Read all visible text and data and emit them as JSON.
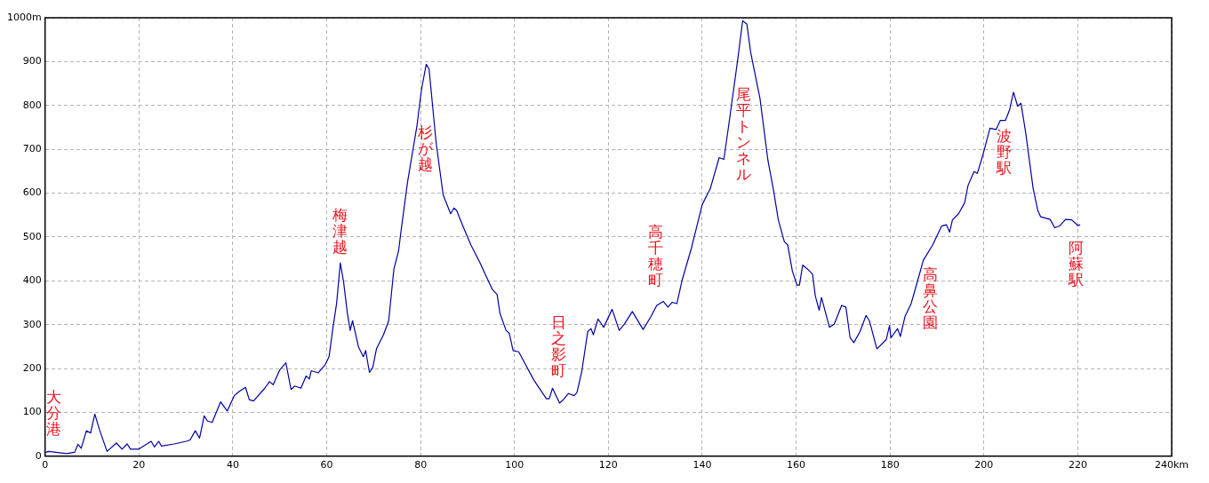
{
  "chart_data": {
    "type": "line",
    "xlim": [
      0,
      240
    ],
    "ylim": [
      0,
      1000
    ],
    "xticks": [
      0,
      20,
      40,
      60,
      80,
      100,
      120,
      140,
      160,
      180,
      200,
      220,
      {
        "value": 240,
        "label": "240km"
      }
    ],
    "yticks": [
      0,
      100,
      200,
      300,
      400,
      500,
      600,
      700,
      800,
      900,
      {
        "value": 1000,
        "label": "1000m"
      }
    ],
    "grid": true,
    "legend": false,
    "marker": "none",
    "line_style": "solid",
    "series": [
      {
        "color": "#0000a0",
        "x": [
          0,
          0.7,
          4.6,
          6.3,
          7,
          7.7,
          8.8,
          9.7,
          10.6,
          11.6,
          13.2,
          15.2,
          16.4,
          17.5,
          18.2,
          19.9,
          22.6,
          23.3,
          24.2,
          24.8,
          27.5,
          30.1,
          30.9,
          32,
          32.9,
          33.9,
          34.6,
          35.6,
          37.4,
          38.8,
          40.3,
          41.4,
          42.7,
          43.5,
          44.4,
          46.8,
          47.8,
          48.6,
          50,
          51.3,
          52.4,
          53.2,
          54.5,
          55.6,
          56.3,
          56.7,
          58.2,
          59.7,
          60.5,
          61.3,
          62.1,
          62.9,
          63.6,
          64.4,
          65,
          65.5,
          66.8,
          67.8,
          68.3,
          69.1,
          69.8,
          70.6,
          72.1,
          73.2,
          74.3,
          75.3,
          75.8,
          77.2,
          79.2,
          80.2,
          81.2,
          81.8,
          83.3,
          84.8,
          86.4,
          87.1,
          87.7,
          89,
          90.7,
          92.7,
          93.3,
          95.3,
          96.3,
          96.9,
          98.2,
          98.9,
          99.7,
          100.9,
          102.5,
          104.1,
          106.8,
          107.4,
          108.1,
          109.6,
          110.4,
          111.5,
          112.7,
          113.3,
          114.3,
          115.6,
          116.3,
          116.8,
          117.8,
          119,
          120.8,
          122.3,
          123.4,
          125.1,
          127.4,
          129.1,
          130.3,
          131.7,
          132.7,
          133.6,
          134.6,
          135.7,
          137.7,
          140,
          141.7,
          143.6,
          144.6,
          145.6,
          147.6,
          148.6,
          149.5,
          150.3,
          152.3,
          154,
          155.2,
          156.2,
          157.5,
          158.2,
          159.2,
          160.2,
          160.7,
          161.4,
          162.5,
          163.5,
          164.1,
          164.9,
          165.4,
          167.1,
          168.1,
          169.7,
          170.6,
          171.5,
          172.3,
          173.6,
          174.9,
          175.6,
          177.2,
          179.2,
          179.9,
          180.2,
          181.6,
          182.2,
          183.2,
          184.5,
          185.8,
          187.1,
          189.1,
          191,
          192,
          192.7,
          193.3,
          194.6,
          195.9,
          196.6,
          197.9,
          198.6,
          199.7,
          201.3,
          202.6,
          203.5,
          204.6,
          205.5,
          206.3,
          207.2,
          207.9,
          208.9,
          210.5,
          211.5,
          212.1,
          214.1,
          215.1,
          216.1,
          217.4,
          218.7,
          220,
          220.5
        ],
        "values": [
          8,
          11,
          6,
          9,
          27,
          18,
          58,
          53,
          96,
          60,
          11,
          30,
          16,
          28,
          16,
          16,
          34,
          21,
          34,
          23,
          28,
          34,
          37,
          58,
          41,
          92,
          80,
          77,
          124,
          103,
          138,
          148,
          157,
          129,
          126,
          155,
          170,
          163,
          197,
          213,
          152,
          160,
          155,
          183,
          176,
          195,
          190,
          209,
          227,
          291,
          348,
          441,
          397,
          326,
          287,
          309,
          248,
          227,
          241,
          191,
          202,
          245,
          277,
          309,
          426,
          468,
          511,
          624,
          752,
          837,
          894,
          883,
          716,
          596,
          553,
          566,
          560,
          525,
          482,
          440,
          426,
          380,
          369,
          326,
          287,
          280,
          241,
          238,
          206,
          174,
          131,
          131,
          155,
          121,
          129,
          143,
          138,
          145,
          191,
          284,
          291,
          277,
          313,
          294,
          335,
          287,
          301,
          330,
          289,
          319,
          344,
          353,
          340,
          351,
          348,
          401,
          475,
          574,
          610,
          681,
          677,
          752,
          908,
          993,
          986,
          922,
          816,
          674,
          606,
          539,
          489,
          482,
          422,
          390,
          390,
          436,
          426,
          415,
          365,
          333,
          362,
          294,
          301,
          344,
          340,
          270,
          259,
          284,
          321,
          309,
          245,
          266,
          298,
          270,
          291,
          273,
          319,
          348,
          397,
          447,
          482,
          525,
          528,
          511,
          539,
          553,
          578,
          617,
          649,
          645,
          684,
          748,
          745,
          766,
          766,
          791,
          830,
          798,
          805,
          738,
          610,
          560,
          546,
          540,
          521,
          525,
          540,
          539,
          526,
          528
        ]
      }
    ],
    "annotations": [
      {
        "text": "大分港",
        "x": 0,
        "y": 8
      },
      {
        "text": "梅津越",
        "x": 62.9,
        "y": 441
      },
      {
        "text": "杉が越",
        "x": 79.2,
        "y": 752
      },
      {
        "text": "日之影町",
        "x": 108.1,
        "y": 155
      },
      {
        "text": "高千穂町",
        "x": 131.7,
        "y": 353
      },
      {
        "text": "尾平トンネル",
        "x": 145.6,
        "y": 752
      },
      {
        "text": "高鼻公園",
        "x": 187.1,
        "y": 447
      },
      {
        "text": "波野駅",
        "x": 206.3,
        "y": 830
      },
      {
        "text": "阿蘇駅",
        "x": 220.5,
        "y": 528
      }
    ]
  }
}
